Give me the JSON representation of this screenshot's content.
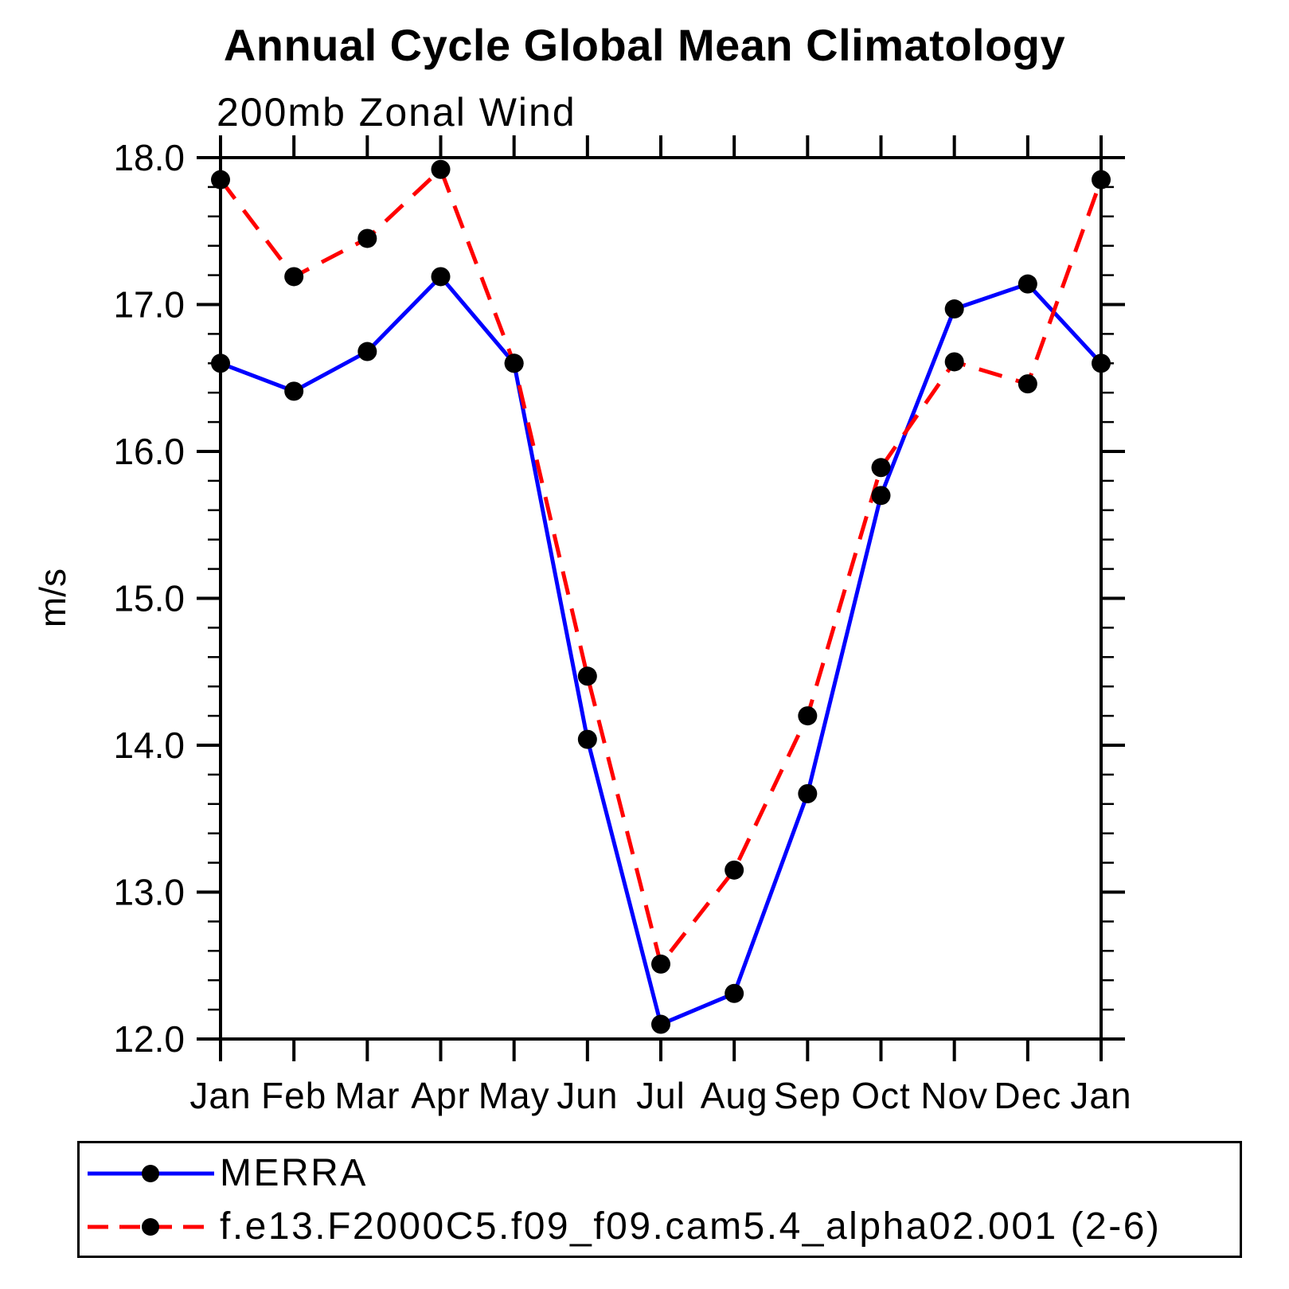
{
  "chart_data": {
    "type": "line",
    "title": "Annual Cycle Global Mean Climatology",
    "subtitle": "200mb Zonal Wind",
    "ylabel": "m/s",
    "xlabel": "",
    "categories": [
      "Jan",
      "Feb",
      "Mar",
      "Apr",
      "May",
      "Jun",
      "Jul",
      "Aug",
      "Sep",
      "Oct",
      "Nov",
      "Dec",
      "Jan"
    ],
    "ylim": [
      12.0,
      18.0
    ],
    "ytick_labels": [
      "12.0",
      "13.0",
      "14.0",
      "15.0",
      "16.0",
      "17.0",
      "18.0"
    ],
    "ytick_major_step": 1.0,
    "ytick_minor_step": 0.2,
    "grid": false,
    "legend_position": "bottom",
    "frame_color": "#000000",
    "marker_color": "#000000",
    "series": [
      {
        "name": "MERRA",
        "color": "#0000ff",
        "style": "solid",
        "marker": "circle",
        "values": [
          16.6,
          16.41,
          16.68,
          17.19,
          16.6,
          14.04,
          12.1,
          12.31,
          13.67,
          15.7,
          16.97,
          17.14,
          16.6
        ]
      },
      {
        "name": "f.e13.F2000C5.f09_f09.cam5.4_alpha02.001 (2-6)",
        "color": "#ff0000",
        "style": "dashed",
        "marker": "circle",
        "values": [
          17.85,
          17.19,
          17.45,
          17.92,
          16.6,
          14.47,
          12.51,
          13.15,
          14.2,
          15.89,
          16.61,
          16.46,
          17.85
        ]
      }
    ]
  }
}
